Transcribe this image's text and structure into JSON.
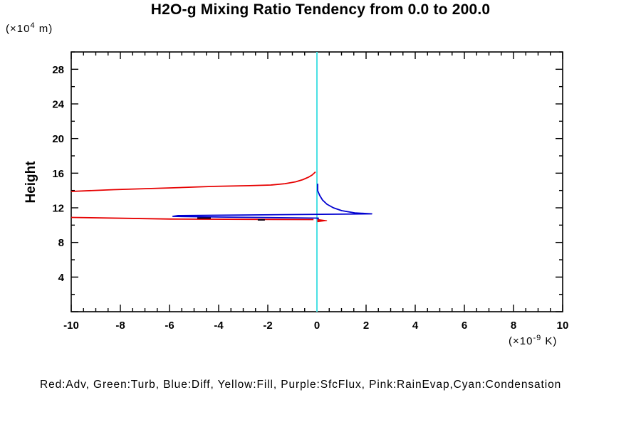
{
  "title": "H2O-g Mixing Ratio Tendency from 0.0 to 200.0",
  "y_axis_label": "Height",
  "y_axis_unit": {
    "pre": "(×10",
    "sup": "4",
    "post": " m)"
  },
  "x_axis_unit": {
    "pre": "(×10",
    "sup": "-9",
    "post": " K)"
  },
  "legend_caption": "Red:Adv, Green:Turb, Blue:Diff, Yellow:Fill, Purple:SfcFlux, Pink:RainEvap,Cyan:Condensation",
  "chart_data": {
    "type": "line",
    "title": "H2O-g Mixing Ratio Tendency from 0.0 to 200.0",
    "xlabel": "(×10^-9 K)",
    "ylabel": "Height (×10^4 m)",
    "xlim": [
      -10,
      10
    ],
    "ylim": [
      0,
      30
    ],
    "grid": false,
    "legend_position": "bottom-caption",
    "axis_color": "#000000",
    "x_ticks": {
      "major_step": 2,
      "minor_step": 0.5,
      "labels": [
        {
          "v": -10,
          "t": "-10"
        },
        {
          "v": -8,
          "t": "-8"
        },
        {
          "v": -6,
          "t": "-6"
        },
        {
          "v": -4,
          "t": "-4"
        },
        {
          "v": -2,
          "t": "-2"
        },
        {
          "v": 0,
          "t": "0"
        },
        {
          "v": 2,
          "t": "2"
        },
        {
          "v": 4,
          "t": "4"
        },
        {
          "v": 6,
          "t": "6"
        },
        {
          "v": 8,
          "t": "8"
        },
        {
          "v": 10,
          "t": "10"
        }
      ]
    },
    "y_ticks": {
      "major_step": 4,
      "minor_step": 2,
      "labels": [
        {
          "v": 4,
          "t": "4"
        },
        {
          "v": 8,
          "t": "8"
        },
        {
          "v": 12,
          "t": "12"
        },
        {
          "v": 16,
          "t": "16"
        },
        {
          "v": 20,
          "t": "20"
        },
        {
          "v": 24,
          "t": "24"
        },
        {
          "v": 28,
          "t": "28"
        }
      ]
    },
    "series": [
      {
        "name": "condensation-zero-line",
        "legend": "Cyan:Condensation",
        "color": "#4ae0e4",
        "width": 2,
        "kind": "line",
        "points": [
          [
            0,
            0
          ],
          [
            0,
            30
          ]
        ]
      },
      {
        "name": "adv-upper-curve",
        "legend": "Red:Adv",
        "color": "#e60000",
        "width": 1.8,
        "kind": "line",
        "points": [
          [
            -10,
            13.89
          ],
          [
            -8.26,
            14.1
          ],
          [
            -5.94,
            14.3
          ],
          [
            -4.2,
            14.47
          ],
          [
            -2.75,
            14.56
          ],
          [
            -1.88,
            14.63
          ],
          [
            -1.3,
            14.79
          ],
          [
            -0.87,
            15.0
          ],
          [
            -0.58,
            15.25
          ],
          [
            -0.35,
            15.53
          ],
          [
            -0.2,
            15.78
          ],
          [
            -0.12,
            15.99
          ],
          [
            -0.06,
            16.15
          ]
        ]
      },
      {
        "name": "adv-lower-line",
        "legend": "Red:Adv",
        "color": "#e60000",
        "width": 1.8,
        "kind": "line",
        "points": [
          [
            -10,
            10.89
          ],
          [
            -5.94,
            10.7
          ],
          [
            -0.14,
            10.64
          ]
        ]
      },
      {
        "name": "adv-lower-arrow",
        "legend": "Red:Adv",
        "color": "#e60000",
        "width": 1,
        "kind": "filled",
        "points": [
          [
            0.03,
            10.66
          ],
          [
            0.41,
            10.52
          ],
          [
            0.03,
            10.38
          ]
        ]
      },
      {
        "name": "diff-curve",
        "legend": "Blue:Diff",
        "color": "#0000d0",
        "width": 1.8,
        "kind": "line",
        "points": [
          [
            0.03,
            14.79
          ],
          [
            0.03,
            13.97
          ],
          [
            0.12,
            13.4
          ],
          [
            0.23,
            12.9
          ],
          [
            0.41,
            12.41
          ],
          [
            0.67,
            12.0
          ],
          [
            1.01,
            11.67
          ],
          [
            1.54,
            11.42
          ],
          [
            2.23,
            11.3
          ],
          [
            -5.65,
            11.1
          ],
          [
            -5.86,
            11.01
          ],
          [
            -3.91,
            10.93
          ],
          [
            0.06,
            10.81
          ],
          [
            0.03,
            10.68
          ]
        ]
      },
      {
        "name": "overlap-dark-segment-1",
        "legend": "",
        "color": "#14000f",
        "width": 2,
        "kind": "line",
        "points": [
          [
            -4.87,
            10.81
          ],
          [
            -4.32,
            10.81
          ]
        ]
      },
      {
        "name": "overlap-dark-segment-2",
        "legend": "",
        "color": "#14000f",
        "width": 2,
        "kind": "line",
        "points": [
          [
            -2.41,
            10.6
          ],
          [
            -2.12,
            10.6
          ]
        ]
      }
    ]
  }
}
